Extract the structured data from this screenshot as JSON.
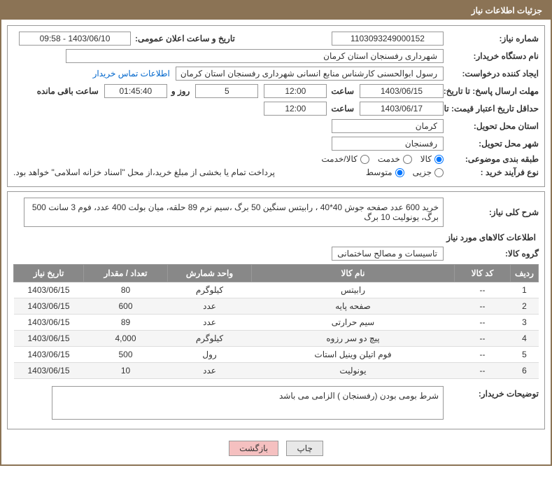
{
  "header": {
    "title": "جزئیات اطلاعات نیاز"
  },
  "info": {
    "need_number_label": "شماره نیاز:",
    "need_number": "1103093249000152",
    "announce_date_label": "تاریخ و ساعت اعلان عمومی:",
    "announce_date": "1403/06/10 - 09:58",
    "buyer_org_label": "نام دستگاه خریدار:",
    "buyer_org": "شهرداری رفسنجان استان کرمان",
    "requester_label": "ایجاد کننده درخواست:",
    "requester": "رسول ابوالحسنی کارشناس منابع انسانی شهرداری رفسنجان استان کرمان",
    "contact_link": "اطلاعات تماس خریدار",
    "deadline_label": "مهلت ارسال پاسخ: تا تاریخ:",
    "deadline_date": "1403/06/15",
    "time_label": "ساعت",
    "deadline_time": "12:00",
    "days_text": "روز و",
    "days_value": "5",
    "remain_label": "ساعت باقی مانده",
    "remain_time": "01:45:40",
    "validity_label": "حداقل تاریخ اعتبار قیمت: تا تاریخ:",
    "validity_date": "1403/06/17",
    "validity_time": "12:00",
    "delivery_province_label": "استان محل تحویل:",
    "delivery_province": "کرمان",
    "delivery_city_label": "شهر محل تحویل:",
    "delivery_city": "رفسنجان",
    "category_label": "طبقه بندی موضوعی:",
    "cat_goods": "کالا",
    "cat_service": "خدمت",
    "cat_both": "کالا/خدمت",
    "process_label": "نوع فرآیند خرید :",
    "proc_partial": "جزیی",
    "proc_medium": "متوسط",
    "payment_note": "پرداخت تمام یا بخشی از مبلغ خرید،از محل \"اسناد خزانه اسلامی\" خواهد بود."
  },
  "desc": {
    "label": "شرح کلی نیاز:",
    "text": "خرید 600 عدد صفحه جوش 40*40 ، رابیتس سنگین 50 برگ ،سیم نرم 89 حلقه، میان بولت 400 عدد، فوم 3 سانت 500 برگ، یونولیت 10 برگ"
  },
  "items": {
    "section_title": "اطلاعات کالاهای مورد نیاز",
    "group_label": "گروه کالا:",
    "group_value": "تاسیسات و مصالح ساختمانی",
    "columns": {
      "row": "ردیف",
      "code": "کد کالا",
      "name": "نام کالا",
      "unit": "واحد شمارش",
      "qty": "تعداد / مقدار",
      "date": "تاریخ نیاز"
    },
    "rows": [
      {
        "row": "1",
        "code": "--",
        "name": "رابیتس",
        "unit": "کیلوگرم",
        "qty": "80",
        "date": "1403/06/15"
      },
      {
        "row": "2",
        "code": "--",
        "name": "صفحه پایه",
        "unit": "عدد",
        "qty": "600",
        "date": "1403/06/15"
      },
      {
        "row": "3",
        "code": "--",
        "name": "سیم حرارتی",
        "unit": "عدد",
        "qty": "89",
        "date": "1403/06/15"
      },
      {
        "row": "4",
        "code": "--",
        "name": "پیچ دو سر رزوه",
        "unit": "کیلوگرم",
        "qty": "4,000",
        "date": "1403/06/15"
      },
      {
        "row": "5",
        "code": "--",
        "name": "فوم اتیلن وینیل استات",
        "unit": "رول",
        "qty": "500",
        "date": "1403/06/15"
      },
      {
        "row": "6",
        "code": "--",
        "name": "یونولیت",
        "unit": "عدد",
        "qty": "10",
        "date": "1403/06/15"
      }
    ]
  },
  "buyer_notes": {
    "label": "توضیحات خریدار:",
    "text": "شرط بومی بودن (رفسنجان ) الزامی می باشد"
  },
  "buttons": {
    "print": "چاپ",
    "back": "بازگشت"
  },
  "colors": {
    "header_bg": "#8b7355",
    "th_bg": "#888888",
    "border": "#999999"
  }
}
